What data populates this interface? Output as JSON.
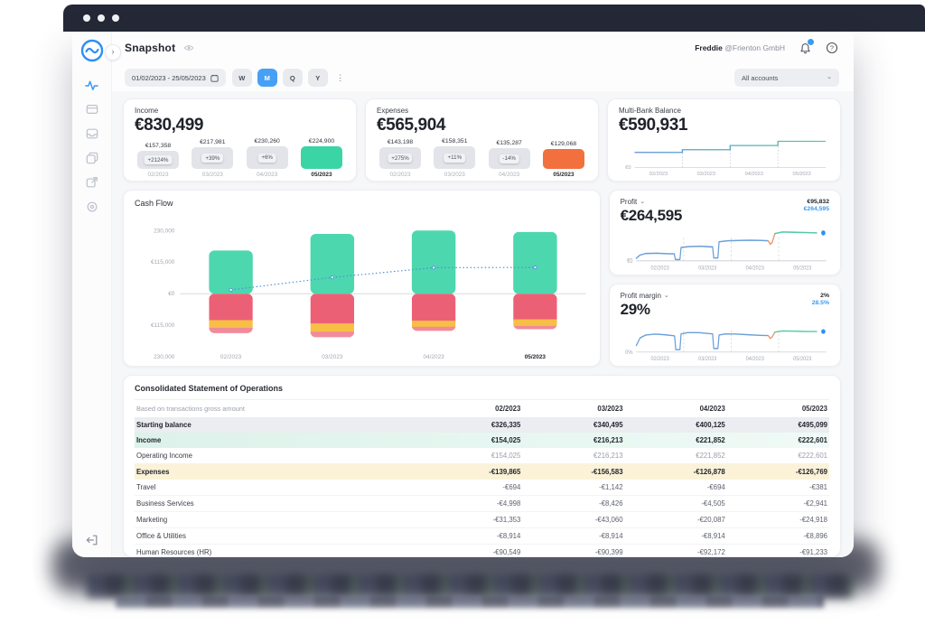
{
  "window": {
    "dots": 3
  },
  "header": {
    "title": "Snapshot",
    "user_name": "Freddie",
    "user_company": "@Frienton GmbH"
  },
  "toolbar": {
    "date_range": "01/02/2023 - 25/05/2023",
    "periods": [
      "W",
      "M",
      "Q",
      "Y"
    ],
    "active_period": "M",
    "account_filter": "All accounts"
  },
  "income_card": {
    "title": "Income",
    "total": "€830,499",
    "raw": [
      157358,
      217981,
      230260,
      224900
    ],
    "months": [
      {
        "label": "02/2023",
        "value": "€157,358",
        "change": "+2124%",
        "current": false
      },
      {
        "label": "03/2023",
        "value": "€217,981",
        "change": "+39%",
        "current": false
      },
      {
        "label": "04/2023",
        "value": "€230,260",
        "change": "+6%",
        "current": false
      },
      {
        "label": "05/2023",
        "value": "€224,900",
        "change": "",
        "current": true
      }
    ]
  },
  "expenses_card": {
    "title": "Expenses",
    "total": "€565,904",
    "raw": [
      143198,
      158351,
      135287,
      129068
    ],
    "months": [
      {
        "label": "02/2023",
        "value": "€143,198",
        "change": "+275%",
        "current": false
      },
      {
        "label": "03/2023",
        "value": "€158,351",
        "change": "+11%",
        "current": false
      },
      {
        "label": "04/2023",
        "value": "€135,287",
        "change": "-14%",
        "current": false
      },
      {
        "label": "05/2023",
        "value": "€129,068",
        "change": "",
        "current": true
      }
    ]
  },
  "balance_card": {
    "title": "Multi-Bank Balance",
    "total": "€590,931",
    "zero_label": "€0"
  },
  "cashflow_card": {
    "title": "Cash Flow"
  },
  "profit_card": {
    "title": "Profit",
    "total": "€264,595",
    "peak_value": "€95,832",
    "current_value": "€264,595",
    "zero_label": "€0"
  },
  "margin_card": {
    "title": "Profit margin",
    "total": "29%",
    "peak_value": "2%",
    "current_value": "28.5%",
    "zero_label": "0%"
  },
  "chart_data": [
    {
      "id": "cashflow",
      "type": "bar",
      "stacked": true,
      "title": "Cash Flow",
      "categories": [
        "02/2023",
        "03/2023",
        "04/2023",
        "05/2023"
      ],
      "series": [
        {
          "name": "inflow",
          "color": "#4dd7ae",
          "values": [
            157358,
            217981,
            230260,
            224900
          ]
        },
        {
          "name": "outflow-main",
          "color": "#ec6076",
          "values": [
            -96000,
            -108000,
            -98000,
            -93000
          ]
        },
        {
          "name": "outflow-secondary",
          "color": "#f7bf45",
          "values": [
            -28000,
            -30000,
            -22000,
            -24000
          ]
        },
        {
          "name": "outflow-other",
          "color": "#f18b9b",
          "values": [
            -19198,
            -20351,
            -15287,
            -12068
          ]
        }
      ],
      "net_line": {
        "name": "net-cash-flow",
        "color": "#4a90d9",
        "values": [
          14160,
          59630,
          94973,
          95832
        ]
      },
      "ylim": [
        -230000,
        230000
      ],
      "yticks": [
        "230,000",
        "€115,000",
        "€0",
        "€115,000",
        "230,000"
      ],
      "legend": false,
      "grid": "zero-line-only"
    },
    {
      "id": "balance",
      "type": "line",
      "title": "Multi-Bank Balance",
      "categories": [
        "02/2023",
        "03/2023",
        "04/2023",
        "05/2023"
      ],
      "values": [
        340495,
        400125,
        495099,
        590931
      ],
      "ymax": 650000,
      "style": "step",
      "colors": [
        "#5a8fd8",
        "#4ec9a6"
      ]
    },
    {
      "id": "profit",
      "type": "line",
      "title": "Profit",
      "categories": [
        "02/2023",
        "03/2023",
        "04/2023",
        "05/2023"
      ],
      "month_end_values": [
        14160,
        73790,
        168763,
        264595
      ],
      "segments": [
        {
          "color": "#6b9fd8",
          "points": [
            [
              0,
              8
            ],
            [
              2,
              18
            ],
            [
              5,
              23
            ],
            [
              11,
              24
            ],
            [
              17,
              22
            ],
            [
              20,
              22
            ],
            [
              20.6,
              4
            ],
            [
              23,
              4
            ],
            [
              23.6,
              42
            ],
            [
              28,
              45
            ],
            [
              34,
              46
            ],
            [
              39,
              44
            ],
            [
              40.2,
              44
            ],
            [
              40.8,
              9
            ],
            [
              43,
              9
            ],
            [
              43.6,
              60
            ],
            [
              48,
              63
            ],
            [
              54,
              64
            ],
            [
              60,
              65
            ],
            [
              66,
              64
            ],
            [
              69.5,
              63
            ]
          ]
        },
        {
          "color": "#e8936a",
          "points": [
            [
              69.5,
              63
            ],
            [
              70.6,
              52
            ],
            [
              71.6,
              58
            ],
            [
              73,
              86
            ]
          ]
        },
        {
          "color": "#55c9a8",
          "points": [
            [
              73,
              86
            ],
            [
              77,
              91
            ],
            [
              83,
              90
            ],
            [
              89,
              89
            ],
            [
              95,
              88
            ]
          ]
        }
      ],
      "dot": [
        98.5,
        88
      ]
    },
    {
      "id": "margin",
      "type": "line",
      "title": "Profit margin",
      "categories": [
        "02/2023",
        "03/2023",
        "04/2023",
        "05/2023"
      ],
      "month_end_values_pct": [
        2,
        27,
        31,
        28.5
      ],
      "segments": [
        {
          "color": "#6b9fd8",
          "points": [
            [
              0,
              22
            ],
            [
              2,
              48
            ],
            [
              5,
              58
            ],
            [
              10,
              61
            ],
            [
              15,
              59
            ],
            [
              19,
              56
            ],
            [
              20.2,
              55
            ],
            [
              20.8,
              8
            ],
            [
              23,
              8
            ],
            [
              23.6,
              62
            ],
            [
              27,
              66
            ],
            [
              33,
              66
            ],
            [
              38,
              63
            ],
            [
              40.2,
              62
            ],
            [
              40.8,
              12
            ],
            [
              43,
              12
            ],
            [
              43.6,
              58
            ],
            [
              47,
              62
            ],
            [
              53,
              61
            ],
            [
              59,
              59
            ],
            [
              65,
              57
            ],
            [
              69.5,
              56
            ]
          ]
        },
        {
          "color": "#e8936a",
          "points": [
            [
              69.5,
              56
            ],
            [
              70.6,
              46
            ],
            [
              71.6,
              52
            ],
            [
              73,
              68
            ]
          ]
        },
        {
          "color": "#55c9a8",
          "points": [
            [
              73,
              68
            ],
            [
              77,
              72
            ],
            [
              83,
              71
            ],
            [
              89,
              70
            ],
            [
              95,
              70
            ]
          ]
        }
      ],
      "dot": [
        98.5,
        70
      ]
    }
  ],
  "table": {
    "title": "Consolidated Statement of Operations",
    "subtitle": "Based on transactions gross amount",
    "columns": [
      "02/2023",
      "03/2023",
      "04/2023",
      "05/2023"
    ],
    "rows": [
      {
        "name": "Starting balance",
        "style": "gray",
        "bold": true,
        "values": [
          "€326,335",
          "€340,495",
          "€400,125",
          "€495,099"
        ]
      },
      {
        "name": "Income",
        "style": "teal",
        "bold": true,
        "values": [
          "€154,025",
          "€216,213",
          "€221,852",
          "€222,601"
        ]
      },
      {
        "name": "Operating Income",
        "style": "muted",
        "bold": false,
        "values": [
          "€154,025",
          "€216,213",
          "€221,852",
          "€222,601"
        ]
      },
      {
        "name": "Expenses",
        "style": "yellow",
        "bold": true,
        "values": [
          "-€139,865",
          "-€156,583",
          "-€126,878",
          "-€126,769"
        ]
      },
      {
        "name": "Travel",
        "style": "plain",
        "bold": false,
        "values": [
          "-€694",
          "-€1,142",
          "-€694",
          "-€381"
        ]
      },
      {
        "name": "Business Services",
        "style": "plain",
        "bold": false,
        "values": [
          "-€4,998",
          "-€8,426",
          "-€4,505",
          "-€2,941"
        ]
      },
      {
        "name": "Marketing",
        "style": "plain",
        "bold": false,
        "values": [
          "-€31,353",
          "-€43,060",
          "-€20,087",
          "-€24,918"
        ]
      },
      {
        "name": "Office & Utilities",
        "style": "plain",
        "bold": false,
        "values": [
          "-€8,914",
          "-€8,914",
          "-€8,914",
          "-€8,896"
        ]
      },
      {
        "name": "Human Resources (HR)",
        "style": "plain",
        "bold": false,
        "values": [
          "-€90,549",
          "-€90,399",
          "-€92,172",
          "-€91,233"
        ]
      }
    ]
  },
  "colors": {
    "accent_blue": "#46a1f6",
    "value_blue": "#3b9af2",
    "green": "#3bd4a5",
    "orange": "#f2703d",
    "red": "#ec6076",
    "yellow": "#f7bf45",
    "pink": "#f18b9b"
  }
}
